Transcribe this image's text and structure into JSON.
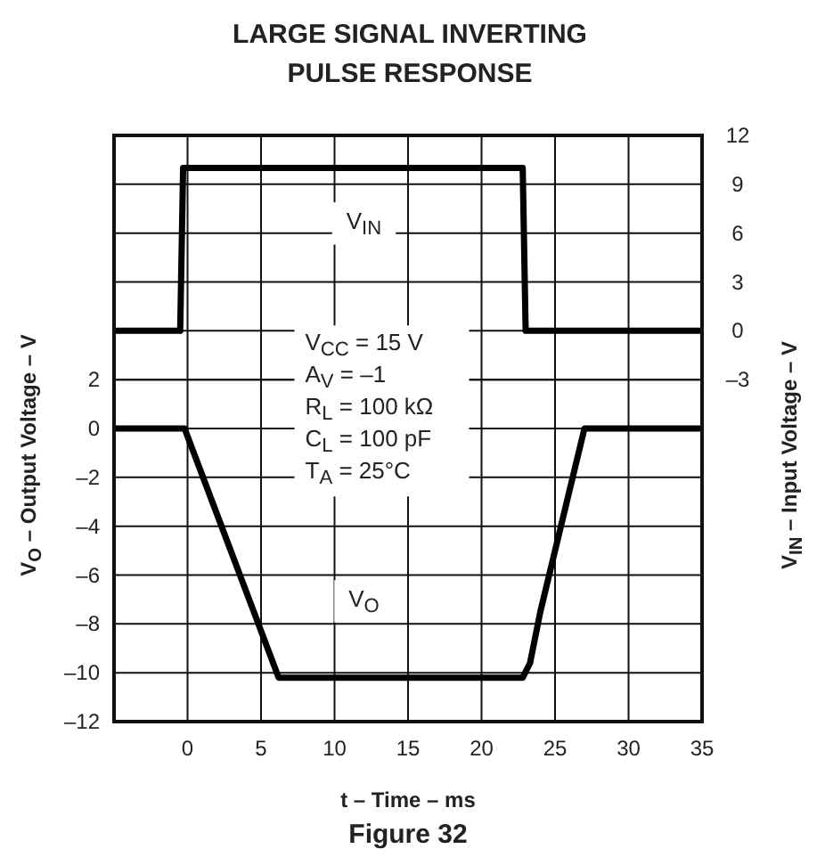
{
  "chart_data": {
    "type": "line",
    "title": "LARGE SIGNAL INVERTING PULSE RESPONSE",
    "xlabel": "t – Time – ms",
    "ylabel": "V$_{O}$ – Output Voltage – V",
    "y2label": "V$_{IN}$ – Input Voltage – V",
    "xlim": [
      -5,
      35
    ],
    "xticks": [
      0,
      5,
      10,
      15,
      20,
      25,
      30,
      35
    ],
    "ylim": [
      -12,
      12
    ],
    "yticks": [
      {
        "value": -12,
        "label": "–12"
      },
      {
        "value": -10,
        "label": "–10"
      },
      {
        "value": -8,
        "label": "–8"
      },
      {
        "value": -6,
        "label": "–6"
      },
      {
        "value": -4,
        "label": "–4"
      },
      {
        "value": -2,
        "label": "–2"
      },
      0,
      2
    ],
    "y2lim": [
      -24,
      12
    ],
    "y2ticks": [
      {
        "value": -3,
        "label": "–3"
      },
      0,
      3,
      6,
      9,
      12
    ],
    "grid": true,
    "marker": "none",
    "line_style": "solid",
    "series": [
      {
        "name": "V$_{IN}$",
        "color": "#000000",
        "axis": "y2",
        "x": [
          -5,
          -0.5,
          -0.3,
          22.8,
          23.0,
          35
        ],
        "values": [
          0,
          0,
          10,
          10,
          0,
          0
        ]
      },
      {
        "name": "V$_{O}$",
        "color": "#000000",
        "x": [
          -5,
          -0.2,
          6.2,
          22.8,
          23.3,
          24,
          27,
          35
        ],
        "values": [
          0,
          0,
          -10.2,
          -10.2,
          -9.6,
          -7.5,
          0,
          0
        ]
      }
    ],
    "annotations": [
      "V$_{CC}$ = 15 V",
      "A$_{V}$ = –1",
      "R$_{L}$ = 100 kΩ",
      "C$_{L}$ = 100 pF",
      "T$_{A}$ = 25°C",
      "Figure 32"
    ]
  }
}
